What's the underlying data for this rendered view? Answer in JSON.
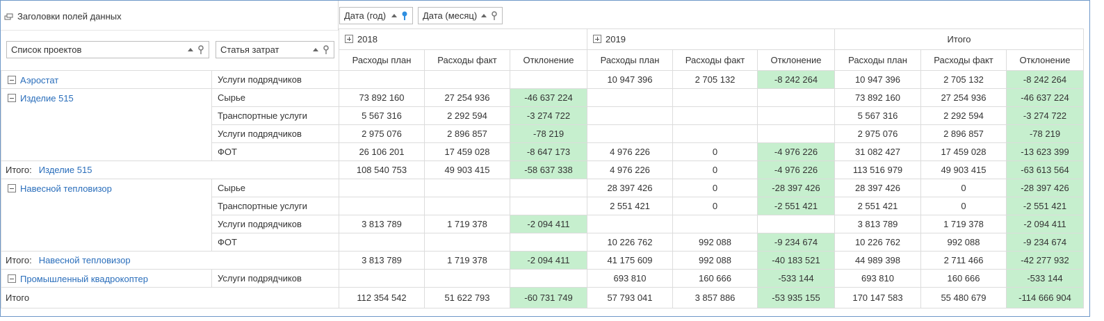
{
  "field_headers_label": "Заголовки полей данных",
  "column_fields": [
    {
      "label": "Дата (год)",
      "sort": "asc",
      "filter_active": true
    },
    {
      "label": "Дата (месяц)",
      "sort": "asc",
      "filter_active": false
    }
  ],
  "row_fields": [
    {
      "label": "Список проектов"
    },
    {
      "label": "Статья затрат"
    }
  ],
  "years": [
    "2018",
    "2019"
  ],
  "grand_total_col_label": "Итого",
  "measures": [
    "Расходы план",
    "Расходы факт",
    "Отклонение"
  ],
  "total_prefix": "Итого:",
  "grand_total_row_label": "Итого",
  "colors": {
    "deviation_bg": "#c6efce",
    "link": "#2a6ebb",
    "frame": "#6e97c8"
  },
  "rows": [
    {
      "type": "item",
      "project": "Аэростат",
      "cat": "Услуги подрядчиков",
      "span": 1,
      "v": [
        "",
        "",
        "",
        "10 947 396",
        "2 705 132",
        "-8 242 264",
        "10 947 396",
        "2 705 132",
        "-8 242 264"
      ]
    },
    {
      "type": "item",
      "project": "Изделие 515",
      "cat": "Сырье",
      "span": 4,
      "v": [
        "73 892 160",
        "27 254 936",
        "-46 637 224",
        "",
        "",
        "",
        "73 892 160",
        "27 254 936",
        "-46 637 224"
      ]
    },
    {
      "type": "item",
      "cat": "Транспортные услуги",
      "v": [
        "5 567 316",
        "2 292 594",
        "-3 274 722",
        "",
        "",
        "",
        "5 567 316",
        "2 292 594",
        "-3 274 722"
      ]
    },
    {
      "type": "item",
      "cat": "Услуги подрядчиков",
      "v": [
        "2 975 076",
        "2 896 857",
        "-78 219",
        "",
        "",
        "",
        "2 975 076",
        "2 896 857",
        "-78 219"
      ]
    },
    {
      "type": "item",
      "cat": "ФОТ",
      "v": [
        "26 106 201",
        "17 459 028",
        "-8 647 173",
        "4 976 226",
        "0",
        "-4 976 226",
        "31 082 427",
        "17 459 028",
        "-13 623 399"
      ]
    },
    {
      "type": "total",
      "project": "Изделие 515",
      "v": [
        "108 540 753",
        "49 903 415",
        "-58 637 338",
        "4 976 226",
        "0",
        "-4 976 226",
        "113 516 979",
        "49 903 415",
        "-63 613 564"
      ]
    },
    {
      "type": "item",
      "project": "Навесной тепловизор",
      "cat": "Сырье",
      "span": 4,
      "v": [
        "",
        "",
        "",
        "28 397 426",
        "0",
        "-28 397 426",
        "28 397 426",
        "0",
        "-28 397 426"
      ]
    },
    {
      "type": "item",
      "cat": "Транспортные услуги",
      "v": [
        "",
        "",
        "",
        "2 551 421",
        "0",
        "-2 551 421",
        "2 551 421",
        "0",
        "-2 551 421"
      ]
    },
    {
      "type": "item",
      "cat": "Услуги подрядчиков",
      "v": [
        "3 813 789",
        "1 719 378",
        "-2 094 411",
        "",
        "",
        "",
        "3 813 789",
        "1 719 378",
        "-2 094 411"
      ]
    },
    {
      "type": "item",
      "cat": "ФОТ",
      "v": [
        "",
        "",
        "",
        "10 226 762",
        "992 088",
        "-9 234 674",
        "10 226 762",
        "992 088",
        "-9 234 674"
      ]
    },
    {
      "type": "total",
      "project": "Навесной тепловизор",
      "v": [
        "3 813 789",
        "1 719 378",
        "-2 094 411",
        "41 175 609",
        "992 088",
        "-40 183 521",
        "44 989 398",
        "2 711 466",
        "-42 277 932"
      ]
    },
    {
      "type": "item",
      "project": "Промышленный квадрокоптер",
      "cat": "Услуги подрядчиков",
      "span": 1,
      "v": [
        "",
        "",
        "",
        "693 810",
        "160 666",
        "-533 144",
        "693 810",
        "160 666",
        "-533 144"
      ]
    },
    {
      "type": "grand",
      "v": [
        "112 354 542",
        "51 622 793",
        "-60 731 749",
        "57 793 041",
        "3 857 886",
        "-53 935 155",
        "170 147 583",
        "55 480 679",
        "-114 666 904"
      ]
    }
  ]
}
